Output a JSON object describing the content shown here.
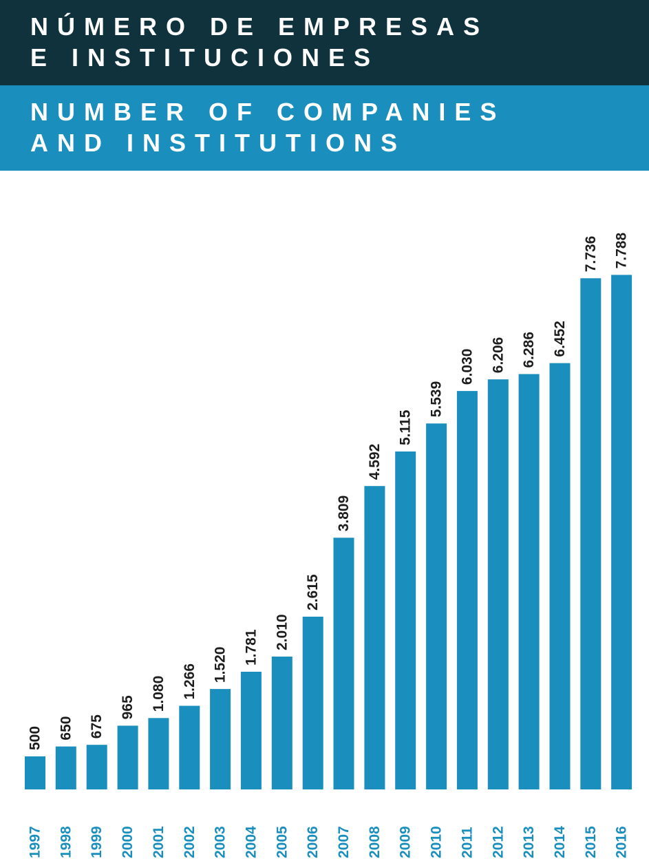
{
  "title_es": {
    "line1": "NÚMERO DE EMPRESAS",
    "line2": "E INSTITUCIONES"
  },
  "title_en": {
    "line1": "NUMBER OF COMPANIES",
    "line2": "AND INSTITUTIONS"
  },
  "colors": {
    "header_dark": "#10323d",
    "header_blue": "#1a8fbd",
    "bar": "#1a8fbd",
    "year_text": "#1a8fbd",
    "value_text": "#1d1d1d"
  },
  "chart_data": {
    "type": "bar",
    "categories": [
      "1997",
      "1998",
      "1999",
      "2000",
      "2001",
      "2002",
      "2003",
      "2004",
      "2005",
      "2006",
      "2007",
      "2008",
      "2009",
      "2010",
      "2011",
      "2012",
      "2013",
      "2014",
      "2015",
      "2016"
    ],
    "values": [
      500,
      650,
      675,
      965,
      1080,
      1266,
      1520,
      1781,
      2010,
      2615,
      3809,
      4592,
      5115,
      5539,
      6030,
      6206,
      6286,
      6452,
      7736,
      7788
    ],
    "value_labels": [
      "500",
      "650",
      "675",
      "965",
      "1.080",
      "1.266",
      "1.520",
      "1.781",
      "2.010",
      "2.615",
      "3.809",
      "4.592",
      "5.115",
      "5.539",
      "6.030",
      "6.206",
      "6.286",
      "6.452",
      "7.736",
      "7.788"
    ],
    "title": "NUMBER OF COMPANIES AND INSTITUTIONS",
    "xlabel": "",
    "ylabel": "",
    "grid": false,
    "legend": "none"
  }
}
